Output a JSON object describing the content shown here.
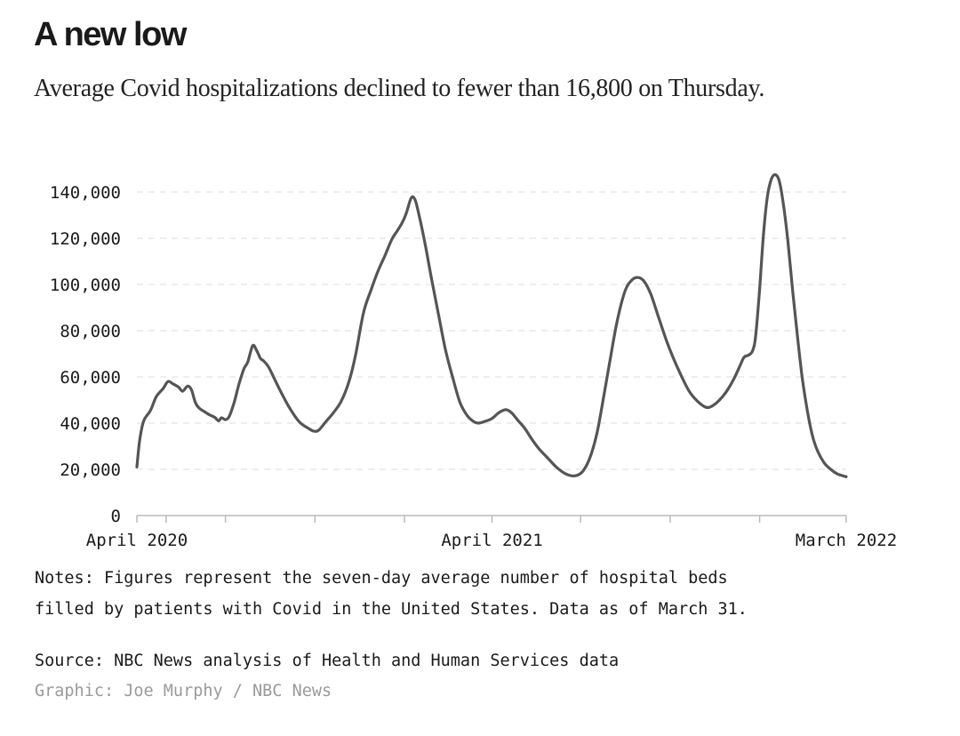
{
  "title": "A new low",
  "subtitle": "Average Covid hospitalizations declined to fewer than 16,800 on Thursday.",
  "notes_line1": "Notes: Figures represent the seven-day average number of hospital beds",
  "notes_line2": "filled by patients with Covid in the United States. Data as of March 31.",
  "source": "Source: NBC News analysis of Health and Human Services data",
  "credit": "Graphic: Joe Murphy / NBC News",
  "colors": {
    "line": "#555555",
    "grid": "#dddddd",
    "axis": "#bbbbbb",
    "text": "#1a1a1a",
    "credit": "#9a9a9a"
  },
  "chart_data": {
    "type": "line",
    "title": "A new low",
    "subtitle": "Average Covid hospitalizations declined to fewer than 16,800 on Thursday.",
    "xlabel": "",
    "ylabel": "",
    "ylim": [
      0,
      140000
    ],
    "grid": true,
    "y_ticks": [
      {
        "value": 0,
        "label": "0"
      },
      {
        "value": 20000,
        "label": "20,000"
      },
      {
        "value": 40000,
        "label": "40,000"
      },
      {
        "value": 60000,
        "label": "60,000"
      },
      {
        "value": 80000,
        "label": "80,000"
      },
      {
        "value": 100000,
        "label": "100,000"
      },
      {
        "value": 120000,
        "label": "120,000"
      },
      {
        "value": 140000,
        "label": "140,000"
      }
    ],
    "x_range": [
      "2020-04-01",
      "2022-03-31"
    ],
    "x_ticks": [
      {
        "date": "2020-04-01",
        "label": "April 2020"
      },
      {
        "date": "2021-04-01",
        "label": "April 2021"
      },
      {
        "date": "2022-03-31",
        "label": "March 2022"
      }
    ],
    "x_minor_ticks": [
      "2020-04-01",
      "2020-05-01",
      "2020-07-01",
      "2020-10-01",
      "2021-01-01",
      "2021-04-01",
      "2021-07-01",
      "2021-10-01",
      "2022-01-01",
      "2022-03-31"
    ],
    "series": [
      {
        "name": "",
        "points": [
          [
            "2020-04-01",
            21000
          ],
          [
            "2020-04-04",
            33000
          ],
          [
            "2020-04-08",
            41000
          ],
          [
            "2020-04-15",
            45500
          ],
          [
            "2020-04-21",
            51500
          ],
          [
            "2020-04-28",
            55000
          ],
          [
            "2020-05-03",
            58000
          ],
          [
            "2020-05-08",
            57000
          ],
          [
            "2020-05-14",
            55500
          ],
          [
            "2020-05-18",
            53800
          ],
          [
            "2020-05-23",
            56000
          ],
          [
            "2020-05-27",
            54500
          ],
          [
            "2020-05-31",
            49000
          ],
          [
            "2020-06-04",
            46500
          ],
          [
            "2020-06-10",
            44800
          ],
          [
            "2020-06-15",
            43500
          ],
          [
            "2020-06-20",
            42500
          ],
          [
            "2020-06-24",
            41000
          ],
          [
            "2020-06-27",
            42300
          ],
          [
            "2020-07-01",
            41500
          ],
          [
            "2020-07-05",
            43000
          ],
          [
            "2020-07-10",
            49000
          ],
          [
            "2020-07-15",
            57000
          ],
          [
            "2020-07-20",
            63500
          ],
          [
            "2020-07-24",
            66500
          ],
          [
            "2020-07-29",
            73500
          ],
          [
            "2020-08-02",
            71500
          ],
          [
            "2020-08-06",
            68000
          ],
          [
            "2020-08-09",
            67000
          ],
          [
            "2020-08-14",
            64500
          ],
          [
            "2020-08-20",
            59500
          ],
          [
            "2020-08-27",
            53500
          ],
          [
            "2020-09-05",
            46500
          ],
          [
            "2020-09-15",
            40500
          ],
          [
            "2020-09-24",
            37800
          ],
          [
            "2020-09-30",
            36500
          ],
          [
            "2020-10-05",
            37000
          ],
          [
            "2020-10-12",
            40500
          ],
          [
            "2020-10-20",
            44500
          ],
          [
            "2020-10-28",
            49500
          ],
          [
            "2020-11-05",
            58000
          ],
          [
            "2020-11-12",
            70000
          ],
          [
            "2020-11-20",
            88000
          ],
          [
            "2020-11-28",
            98000
          ],
          [
            "2020-12-05",
            106000
          ],
          [
            "2020-12-12",
            112500
          ],
          [
            "2020-12-19",
            119500
          ],
          [
            "2020-12-25",
            123500
          ],
          [
            "2020-12-30",
            127000
          ],
          [
            "2021-01-03",
            131000
          ],
          [
            "2021-01-08",
            137500
          ],
          [
            "2021-01-12",
            136500
          ],
          [
            "2021-01-16",
            130000
          ],
          [
            "2021-01-22",
            118000
          ],
          [
            "2021-01-29",
            102000
          ],
          [
            "2021-02-05",
            87000
          ],
          [
            "2021-02-12",
            72000
          ],
          [
            "2021-02-20",
            59000
          ],
          [
            "2021-02-27",
            49000
          ],
          [
            "2021-03-06",
            43500
          ],
          [
            "2021-03-12",
            41000
          ],
          [
            "2021-03-18",
            40000
          ],
          [
            "2021-03-25",
            40800
          ],
          [
            "2021-04-01",
            42000
          ],
          [
            "2021-04-08",
            44500
          ],
          [
            "2021-04-15",
            45800
          ],
          [
            "2021-04-21",
            44500
          ],
          [
            "2021-04-28",
            41000
          ],
          [
            "2021-05-05",
            37500
          ],
          [
            "2021-05-12",
            33000
          ],
          [
            "2021-05-19",
            29000
          ],
          [
            "2021-05-28",
            25000
          ],
          [
            "2021-06-06",
            21000
          ],
          [
            "2021-06-15",
            18200
          ],
          [
            "2021-06-22",
            17200
          ],
          [
            "2021-06-28",
            17500
          ],
          [
            "2021-07-04",
            19500
          ],
          [
            "2021-07-11",
            25500
          ],
          [
            "2021-07-18",
            36000
          ],
          [
            "2021-07-25",
            52000
          ],
          [
            "2021-08-01",
            69000
          ],
          [
            "2021-08-08",
            85000
          ],
          [
            "2021-08-16",
            97500
          ],
          [
            "2021-08-23",
            102000
          ],
          [
            "2021-08-29",
            103000
          ],
          [
            "2021-09-04",
            101500
          ],
          [
            "2021-09-11",
            96000
          ],
          [
            "2021-09-19",
            86000
          ],
          [
            "2021-09-27",
            76000
          ],
          [
            "2021-10-05",
            67500
          ],
          [
            "2021-10-13",
            60000
          ],
          [
            "2021-10-21",
            53500
          ],
          [
            "2021-10-29",
            49500
          ],
          [
            "2021-11-05",
            47200
          ],
          [
            "2021-11-10",
            46800
          ],
          [
            "2021-11-17",
            48500
          ],
          [
            "2021-11-24",
            51500
          ],
          [
            "2021-11-30",
            55000
          ],
          [
            "2021-12-06",
            59500
          ],
          [
            "2021-12-12",
            65000
          ],
          [
            "2021-12-16",
            68500
          ],
          [
            "2021-12-21",
            69500
          ],
          [
            "2021-12-25",
            71500
          ],
          [
            "2021-12-28",
            78000
          ],
          [
            "2022-01-01",
            98000
          ],
          [
            "2022-01-05",
            122000
          ],
          [
            "2022-01-09",
            138000
          ],
          [
            "2022-01-13",
            145500
          ],
          [
            "2022-01-17",
            147500
          ],
          [
            "2022-01-21",
            145000
          ],
          [
            "2022-01-25",
            136000
          ],
          [
            "2022-01-30",
            119000
          ],
          [
            "2022-02-04",
            97000
          ],
          [
            "2022-02-09",
            77000
          ],
          [
            "2022-02-14",
            59000
          ],
          [
            "2022-02-19",
            45500
          ],
          [
            "2022-02-24",
            35000
          ],
          [
            "2022-03-01",
            28500
          ],
          [
            "2022-03-08",
            23000
          ],
          [
            "2022-03-15",
            20000
          ],
          [
            "2022-03-22",
            18000
          ],
          [
            "2022-03-31",
            16800
          ]
        ]
      }
    ]
  }
}
